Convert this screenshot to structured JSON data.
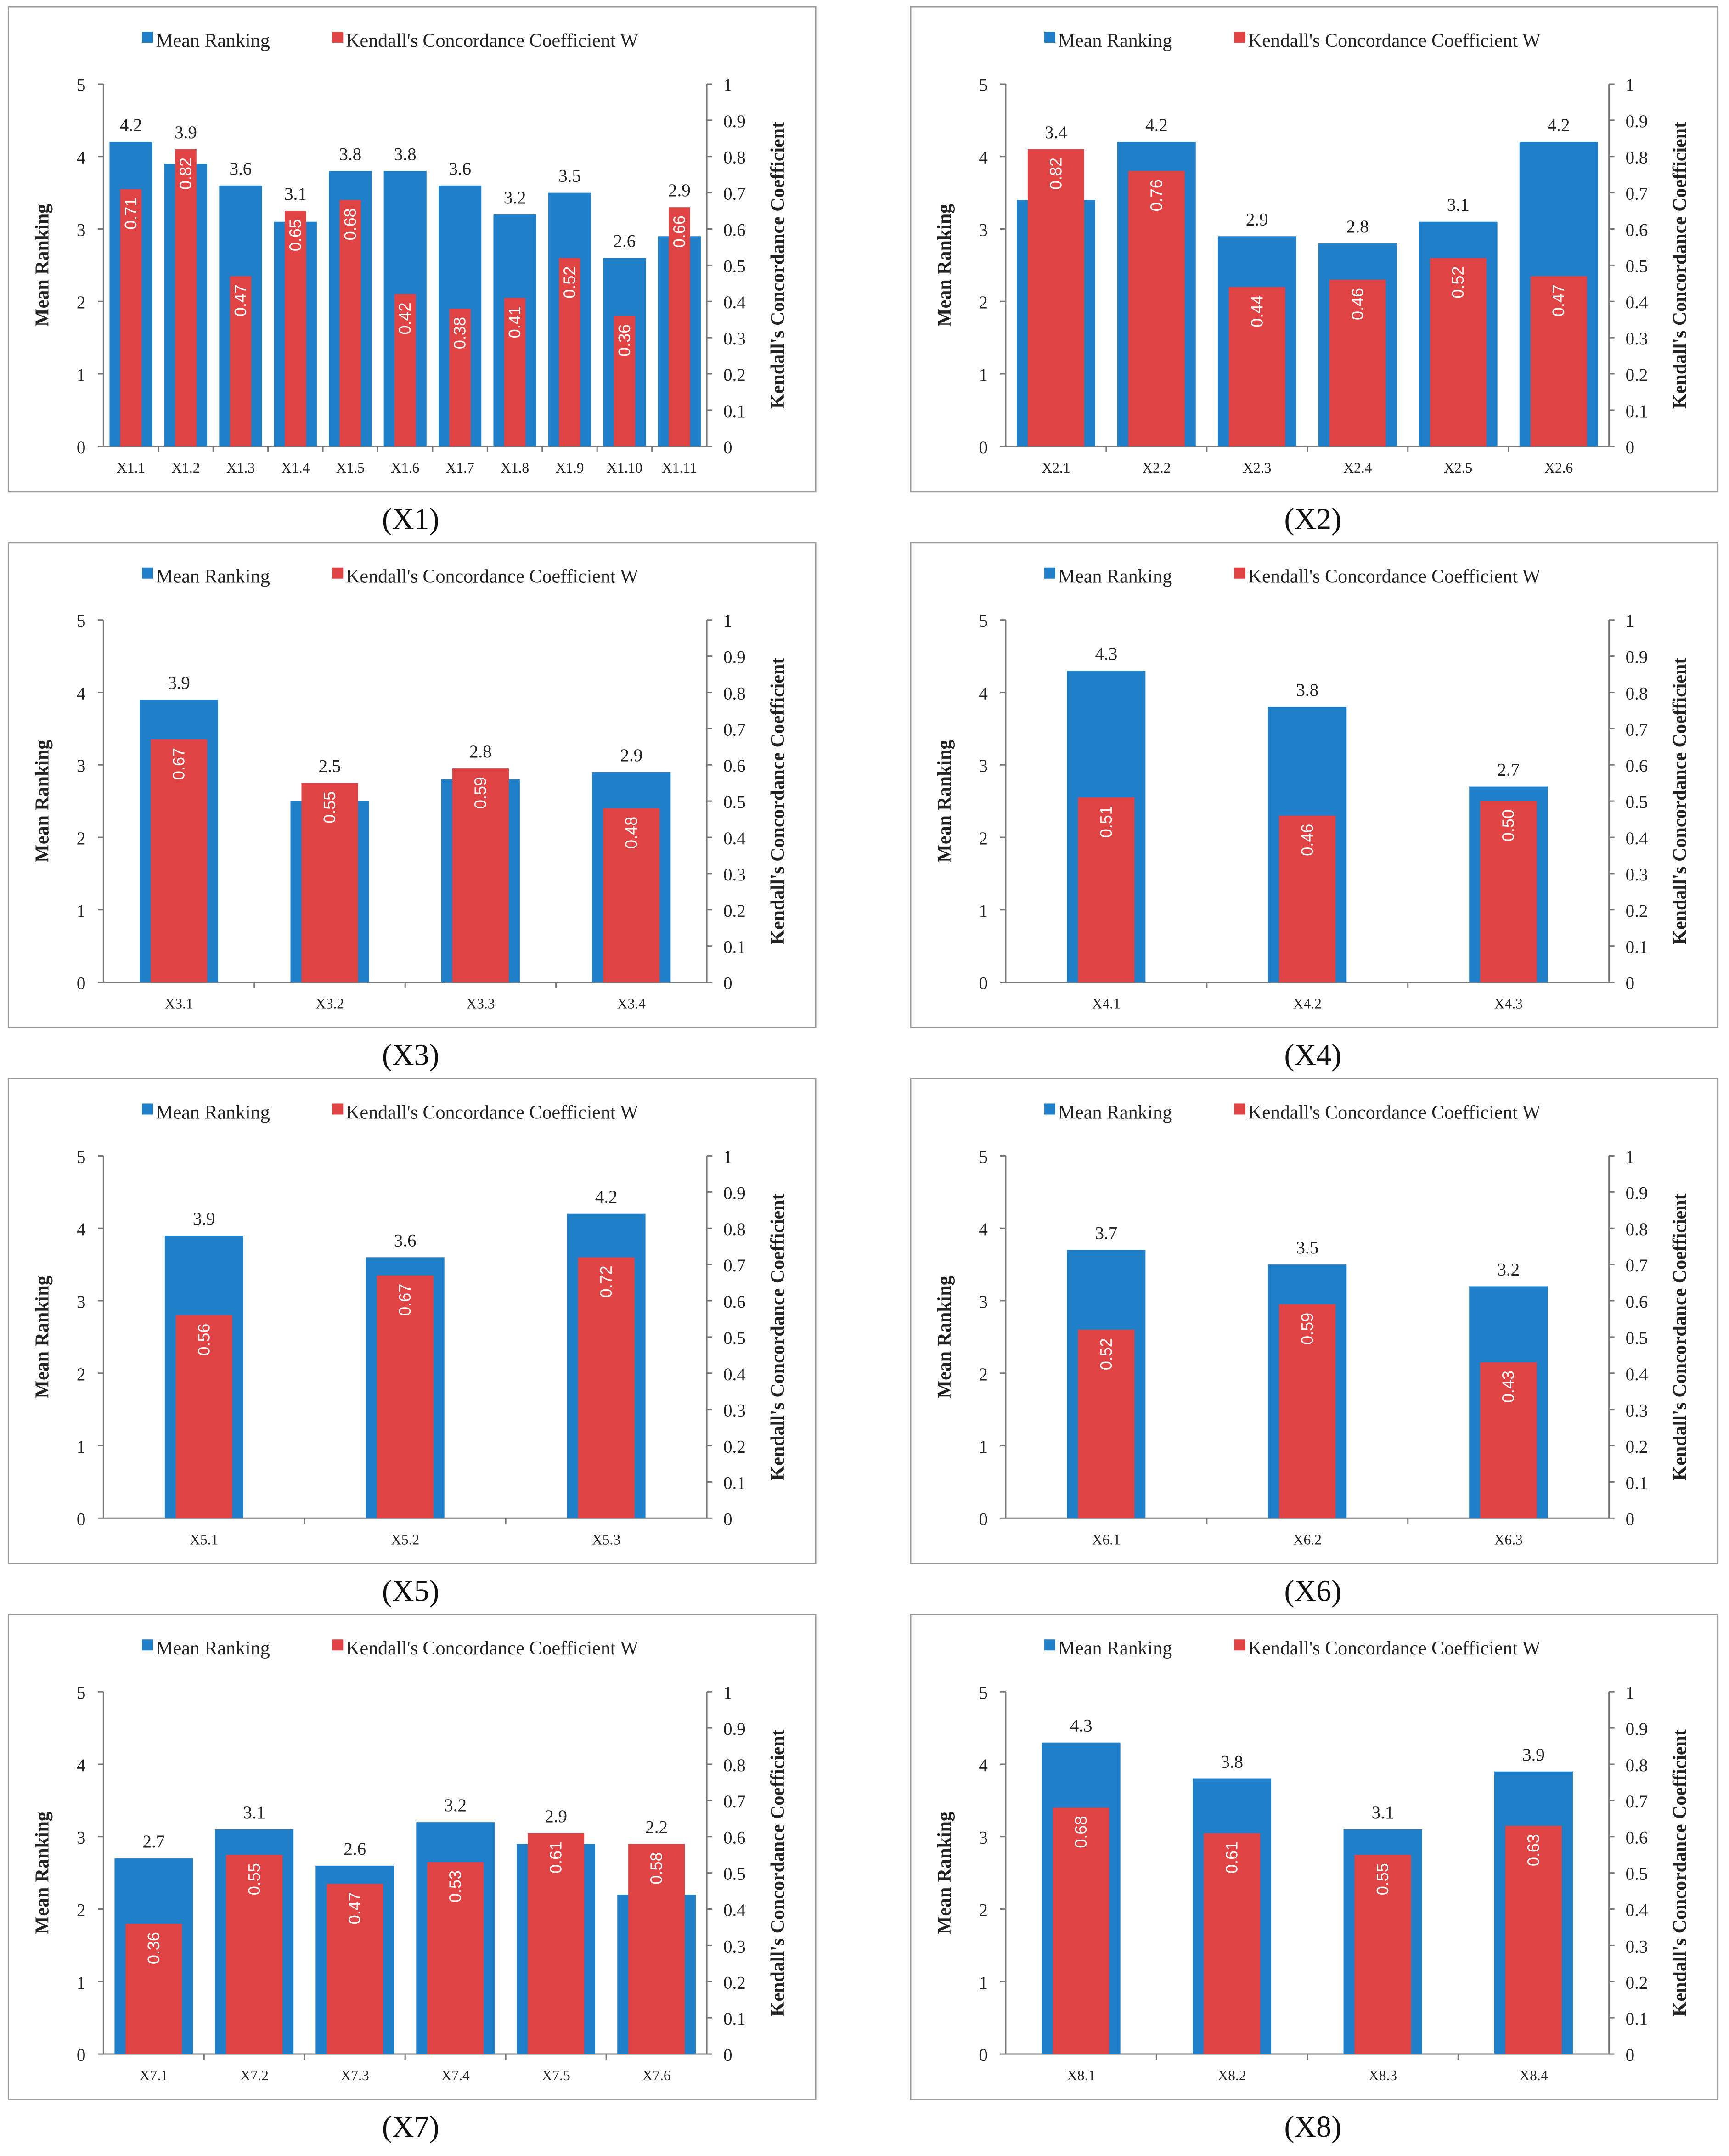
{
  "colors": {
    "mean": "#1f7fc8",
    "kendall": "#e04343",
    "frame": "#9a9a9a"
  },
  "legend": {
    "mean": "Mean Ranking",
    "kendall": "Kendall's Concordance Coefficient W"
  },
  "axes": {
    "left_title": "Mean Ranking",
    "right_title": "Kendall's Concordance Coefficient",
    "left_ylim": [
      0,
      5
    ],
    "right_ylim": [
      0,
      1
    ],
    "left_ticks": [
      "0",
      "1",
      "2",
      "3",
      "4",
      "5"
    ],
    "right_ticks": [
      "0",
      "0.1",
      "0.2",
      "0.3",
      "0.4",
      "0.5",
      "0.6",
      "0.7",
      "0.8",
      "0.9",
      "1"
    ]
  },
  "chart_data": [
    {
      "type": "bar",
      "caption": "(X1)",
      "categories": [
        "X1.1",
        "X1.2",
        "X1.3",
        "X1.4",
        "X1.5",
        "X1.6",
        "X1.7",
        "X1.8",
        "X1.9",
        "X1.10",
        "X1.11"
      ],
      "series": [
        {
          "name": "Mean Ranking",
          "axis": "left",
          "values": [
            4.2,
            3.9,
            3.6,
            3.1,
            3.8,
            3.8,
            3.6,
            3.2,
            3.5,
            2.6,
            2.9
          ]
        },
        {
          "name": "Kendall's Concordance Coefficient W",
          "axis": "right",
          "values": [
            0.71,
            0.82,
            0.47,
            0.65,
            0.68,
            0.42,
            0.38,
            0.41,
            0.52,
            0.36,
            0.66
          ]
        }
      ]
    },
    {
      "type": "bar",
      "caption": "(X2)",
      "categories": [
        "X2.1",
        "X2.2",
        "X2.3",
        "X2.4",
        "X2.5",
        "X2.6"
      ],
      "series": [
        {
          "name": "Mean Ranking",
          "axis": "left",
          "values": [
            3.4,
            4.2,
            2.9,
            2.8,
            3.1,
            4.2
          ]
        },
        {
          "name": "Kendall's Concordance Coefficient W",
          "axis": "right",
          "values": [
            0.82,
            0.76,
            0.44,
            0.46,
            0.52,
            0.47
          ]
        }
      ]
    },
    {
      "type": "bar",
      "caption": "(X3)",
      "categories": [
        "X3.1",
        "X3.2",
        "X3.3",
        "X3.4"
      ],
      "series": [
        {
          "name": "Mean Ranking",
          "axis": "left",
          "values": [
            3.9,
            2.5,
            2.8,
            2.9
          ]
        },
        {
          "name": "Kendall's Concordance Coefficient W",
          "axis": "right",
          "values": [
            0.67,
            0.55,
            0.59,
            0.48
          ]
        }
      ]
    },
    {
      "type": "bar",
      "caption": "(X4)",
      "categories": [
        "X4.1",
        "X4.2",
        "X4.3"
      ],
      "series": [
        {
          "name": "Mean Ranking",
          "axis": "left",
          "values": [
            4.3,
            3.8,
            2.7
          ]
        },
        {
          "name": "Kendall's Concordance Coefficient W",
          "axis": "right",
          "values": [
            0.51,
            0.46,
            0.5
          ]
        }
      ]
    },
    {
      "type": "bar",
      "caption": "(X5)",
      "categories": [
        "X5.1",
        "X5.2",
        "X5.3"
      ],
      "series": [
        {
          "name": "Mean Ranking",
          "axis": "left",
          "values": [
            3.9,
            3.6,
            4.2
          ]
        },
        {
          "name": "Kendall's Concordance Coefficient W",
          "axis": "right",
          "values": [
            0.56,
            0.67,
            0.72
          ]
        }
      ]
    },
    {
      "type": "bar",
      "caption": "(X6)",
      "categories": [
        "X6.1",
        "X6.2",
        "X6.3"
      ],
      "series": [
        {
          "name": "Mean Ranking",
          "axis": "left",
          "values": [
            3.7,
            3.5,
            3.2
          ]
        },
        {
          "name": "Kendall's Concordance Coefficient W",
          "axis": "right",
          "values": [
            0.52,
            0.59,
            0.43
          ]
        }
      ]
    },
    {
      "type": "bar",
      "caption": "(X7)",
      "categories": [
        "X7.1",
        "X7.2",
        "X7.3",
        "X7.4",
        "X7.5",
        "X7.6"
      ],
      "series": [
        {
          "name": "Mean Ranking",
          "axis": "left",
          "values": [
            2.7,
            3.1,
            2.6,
            3.2,
            2.9,
            2.2
          ]
        },
        {
          "name": "Kendall's Concordance Coefficient W",
          "axis": "right",
          "values": [
            0.36,
            0.55,
            0.47,
            0.53,
            0.61,
            0.58
          ]
        }
      ]
    },
    {
      "type": "bar",
      "caption": "(X8)",
      "categories": [
        "X8.1",
        "X8.2",
        "X8.3",
        "X8.4"
      ],
      "series": [
        {
          "name": "Mean Ranking",
          "axis": "left",
          "values": [
            4.3,
            3.8,
            3.1,
            3.9
          ]
        },
        {
          "name": "Kendall's Concordance Coefficient W",
          "axis": "right",
          "values": [
            0.68,
            0.61,
            0.55,
            0.63
          ]
        }
      ]
    }
  ]
}
